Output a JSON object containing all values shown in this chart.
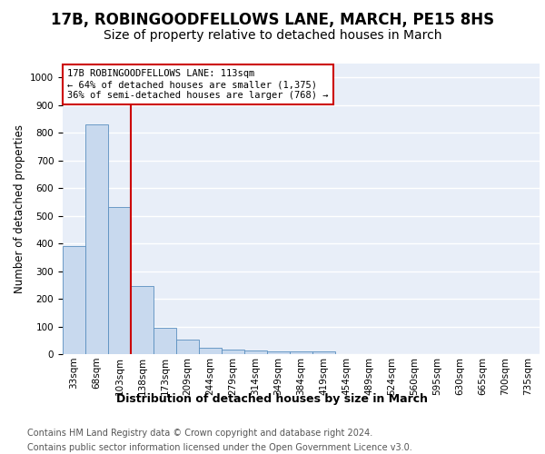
{
  "title1": "17B, ROBINGOODFELLOWS LANE, MARCH, PE15 8HS",
  "title2": "Size of property relative to detached houses in March",
  "xlabel": "Distribution of detached houses by size in March",
  "ylabel": "Number of detached properties",
  "bins": [
    "33sqm",
    "68sqm",
    "103sqm",
    "138sqm",
    "173sqm",
    "209sqm",
    "244sqm",
    "279sqm",
    "314sqm",
    "349sqm",
    "384sqm",
    "419sqm",
    "454sqm",
    "489sqm",
    "524sqm",
    "560sqm",
    "595sqm",
    "630sqm",
    "665sqm",
    "700sqm",
    "735sqm"
  ],
  "values": [
    390,
    830,
    530,
    245,
    95,
    52,
    22,
    17,
    12,
    10,
    10,
    10,
    0,
    0,
    0,
    0,
    0,
    0,
    0,
    0,
    0
  ],
  "bar_color": "#c8d9ee",
  "bar_edge_color": "#5a8fbf",
  "vline_x": 2.5,
  "vline_color": "#cc0000",
  "annotation_line1": "17B ROBINGOODFELLOWS LANE: 113sqm",
  "annotation_line2": "← 64% of detached houses are smaller (1,375)",
  "annotation_line3": "36% of semi-detached houses are larger (768) →",
  "annotation_box_facecolor": "#ffffff",
  "annotation_box_edgecolor": "#cc0000",
  "ylim": [
    0,
    1050
  ],
  "yticks": [
    0,
    100,
    200,
    300,
    400,
    500,
    600,
    700,
    800,
    900,
    1000
  ],
  "footer1": "Contains HM Land Registry data © Crown copyright and database right 2024.",
  "footer2": "Contains public sector information licensed under the Open Government Licence v3.0.",
  "plot_bg_color": "#e8eef8",
  "fig_bg_color": "#ffffff",
  "grid_color": "#ffffff",
  "title1_fontsize": 12,
  "title2_fontsize": 10,
  "xlabel_fontsize": 9,
  "ylabel_fontsize": 8.5,
  "tick_fontsize": 7.5,
  "footer_fontsize": 7,
  "annot_fontsize": 7.5
}
